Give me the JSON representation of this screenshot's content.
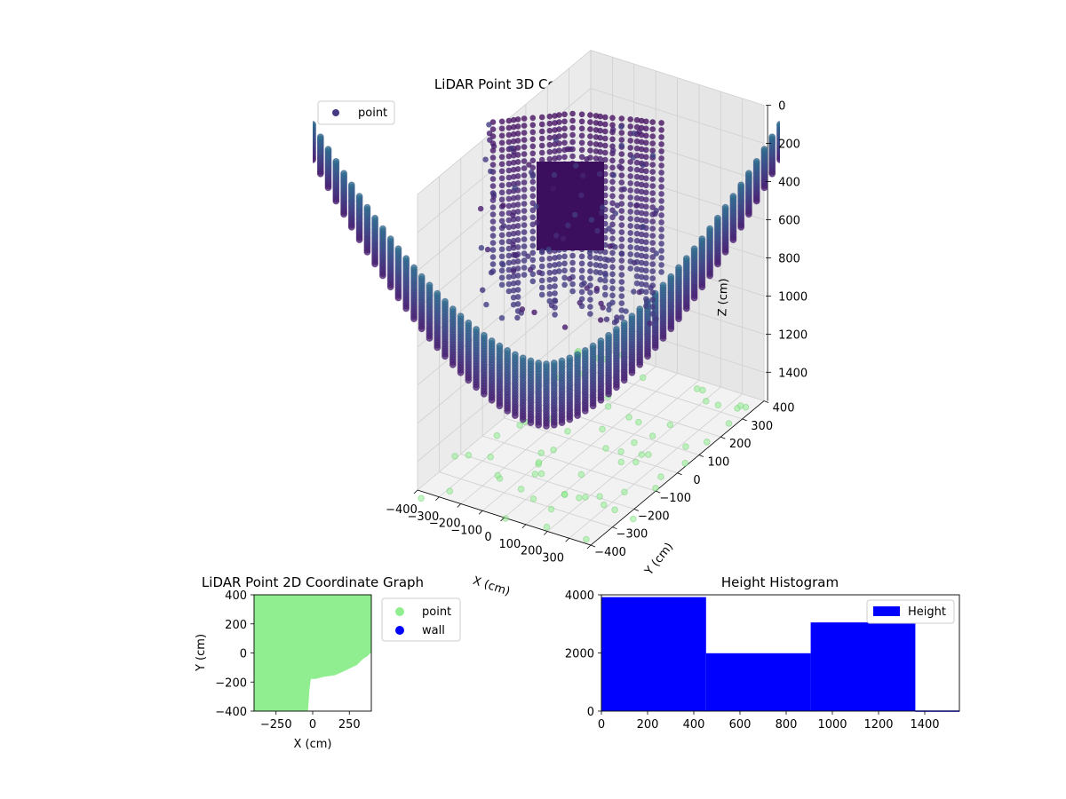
{
  "chart_data": [
    {
      "type": "scatter",
      "projection": "3d",
      "title": "LiDAR Point 3D Coordinate Graph",
      "xlabel": "X (cm)",
      "ylabel": "Y (cm)",
      "zlabel": "Z (cm)",
      "zaxis_inverted": true,
      "xticks": [
        -400,
        -300,
        -200,
        -100,
        0,
        100,
        200,
        300,
        400
      ],
      "xtick_labels": [
        "−400",
        "−300",
        "−200",
        "−100",
        "0",
        "100",
        "200",
        "300",
        "400"
      ],
      "yticks": [
        -400,
        -300,
        -200,
        -100,
        0,
        100,
        200,
        300,
        400
      ],
      "ytick_labels": [
        "−400",
        "−300",
        "−200",
        "−100",
        "0",
        "100",
        "200",
        "300",
        "400"
      ],
      "zticks": [
        0,
        200,
        400,
        600,
        800,
        1000,
        1200,
        1400
      ],
      "ztick_labels": [
        "0",
        "200",
        "400",
        "600",
        "800",
        "1000",
        "1200",
        "1400"
      ],
      "xlim": [
        -400,
        400
      ],
      "ylim": [
        -400,
        400
      ],
      "zlim": [
        0,
        1550
      ],
      "grid": true,
      "legend": {
        "position": "upper-left",
        "entries": [
          {
            "label": "point",
            "color": "#443983"
          }
        ]
      },
      "colormap": "viridis",
      "floor_points_color": "#90ee90",
      "series": [
        {
          "name": "point",
          "description": "dense curved point cloud (bowl shaped), colored by height"
        }
      ]
    },
    {
      "type": "scatter",
      "title": "LiDAR Point 2D Coordinate Graph",
      "xlabel": "X (cm)",
      "ylabel": "Y (cm)",
      "xlim": [
        -400,
        400
      ],
      "ylim": [
        -400,
        400
      ],
      "xticks": [
        -250,
        0,
        250
      ],
      "xtick_labels": [
        "−250",
        "0",
        "250"
      ],
      "yticks": [
        -400,
        -200,
        0,
        200,
        400
      ],
      "ytick_labels": [
        "−400",
        "−200",
        "0",
        "200",
        "400"
      ],
      "legend": {
        "position": "outside-right",
        "entries": [
          {
            "label": "point",
            "color": "#90ee90"
          },
          {
            "label": "wall",
            "color": "#0000ff"
          }
        ]
      },
      "region_outline": [
        [
          -400,
          400
        ],
        [
          400,
          400
        ],
        [
          400,
          0
        ],
        [
          390,
          0
        ],
        [
          370,
          -20
        ],
        [
          340,
          -40
        ],
        [
          300,
          -80
        ],
        [
          220,
          -120
        ],
        [
          150,
          -150
        ],
        [
          80,
          -160
        ],
        [
          20,
          -175
        ],
        [
          -15,
          -175
        ],
        [
          -25,
          -250
        ],
        [
          -35,
          -400
        ],
        [
          -400,
          -400
        ],
        [
          -400,
          50
        ],
        [
          -370,
          50
        ],
        [
          -360,
          20
        ],
        [
          -340,
          0
        ],
        [
          -400,
          -10
        ]
      ],
      "series": [
        {
          "name": "point",
          "color": "#90ee90"
        },
        {
          "name": "wall",
          "color": "#0000ff"
        }
      ]
    },
    {
      "type": "bar",
      "title": "Height Histogram",
      "xlim": [
        0,
        1550
      ],
      "ylim": [
        0,
        4000
      ],
      "xticks": [
        0,
        200,
        400,
        600,
        800,
        1000,
        1200,
        1400
      ],
      "xtick_labels": [
        "0",
        "200",
        "400",
        "600",
        "800",
        "1000",
        "1200",
        "1400"
      ],
      "yticks": [
        0,
        2000,
        4000
      ],
      "ytick_labels": [
        "0",
        "2000",
        "4000"
      ],
      "legend": {
        "position": "upper-right",
        "entries": [
          {
            "label": "Height",
            "color": "#0000ff"
          }
        ]
      },
      "bins": [
        {
          "x0": 0,
          "x1": 453,
          "count": 3920
        },
        {
          "x0": 453,
          "x1": 906,
          "count": 1990
        },
        {
          "x0": 906,
          "x1": 1359,
          "count": 3050
        },
        {
          "x0": 1359,
          "x1": 1550,
          "count": 20
        }
      ],
      "series": [
        {
          "name": "Height",
          "color": "#0000ff"
        }
      ]
    }
  ]
}
